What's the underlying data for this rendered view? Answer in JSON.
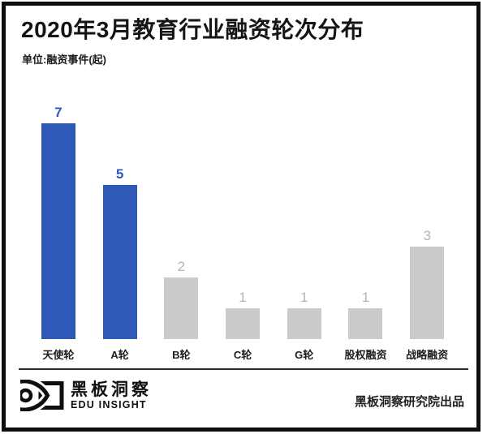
{
  "header": {
    "title": "2020年3月教育行业融资轮次分布",
    "subtitle": "单位:融资事件(起)"
  },
  "chart_data": {
    "type": "bar",
    "title": "2020年3月教育行业融资轮次分布",
    "unit_label": "单位:融资事件(起)",
    "categories": [
      "天使轮",
      "A轮",
      "B轮",
      "C轮",
      "G轮",
      "股权融资",
      "战略融资"
    ],
    "values": [
      7,
      5,
      2,
      1,
      1,
      1,
      3
    ],
    "bar_colors": [
      "#2e59b7",
      "#2e59b7",
      "#cbcbcb",
      "#cbcbcb",
      "#cbcbcb",
      "#cbcbcb",
      "#cbcbcb"
    ],
    "value_label_colors": [
      "#2e59b7",
      "#2e59b7",
      "#b5b5b5",
      "#b5b5b5",
      "#b5b5b5",
      "#b5b5b5",
      "#b5b5b5"
    ],
    "xlabel": "",
    "ylabel": "",
    "ylim": [
      0,
      7.5
    ],
    "grid": false,
    "value_labels_shown": true,
    "legend": "none"
  },
  "footer": {
    "logo_cn": "黑板洞察",
    "logo_en": "EDU INSIGHT",
    "credit": "黑板洞察研究院出品"
  },
  "colors": {
    "accent_blue": "#2e59b7",
    "bar_gray": "#cbcbcb",
    "value_gray": "#b5b5b5",
    "text_dark": "#151515",
    "frame_black": "#0e0e0e"
  }
}
